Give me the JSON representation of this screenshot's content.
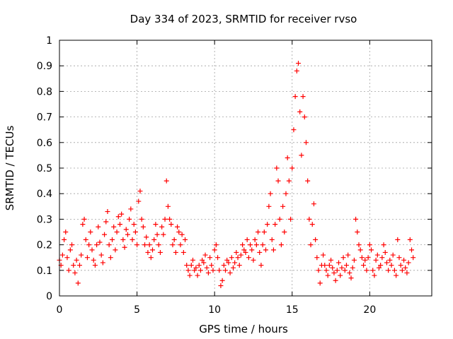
{
  "chart_data": {
    "type": "scatter",
    "title": "Day 334 of 2023, SRMTID for receiver rvso",
    "xlabel": "GPS time / hours",
    "ylabel": "SRMTID / TECUs",
    "xlim": [
      0,
      24
    ],
    "ylim": [
      0,
      1
    ],
    "xticks": [
      0,
      5,
      10,
      15,
      20
    ],
    "yticks": [
      0,
      0.1,
      0.2,
      0.3,
      0.4,
      0.5,
      0.6,
      0.7,
      0.8,
      0.9,
      1
    ],
    "x_tick_labels": [
      "0",
      "5",
      "10",
      "15",
      "20"
    ],
    "y_tick_labels": [
      "0",
      "0.1",
      "0.2",
      "0.3",
      "0.4",
      "0.5",
      "0.6",
      "0.7",
      "0.8",
      "0.9",
      "1"
    ],
    "grid": true,
    "marker": "+",
    "marker_color": "#ff0000",
    "grid_color": "#a0a0a0",
    "series": [
      {
        "name": "SRMTID",
        "points": [
          [
            0.0,
            0.14
          ],
          [
            0.1,
            0.12
          ],
          [
            0.2,
            0.16
          ],
          [
            0.3,
            0.22
          ],
          [
            0.4,
            0.25
          ],
          [
            0.5,
            0.15
          ],
          [
            0.6,
            0.1
          ],
          [
            0.7,
            0.18
          ],
          [
            0.8,
            0.2
          ],
          [
            0.9,
            0.12
          ],
          [
            1.0,
            0.09
          ],
          [
            1.1,
            0.14
          ],
          [
            1.2,
            0.05
          ],
          [
            1.3,
            0.12
          ],
          [
            1.4,
            0.16
          ],
          [
            1.5,
            0.28
          ],
          [
            1.6,
            0.3
          ],
          [
            1.7,
            0.22
          ],
          [
            1.8,
            0.15
          ],
          [
            1.9,
            0.2
          ],
          [
            2.0,
            0.25
          ],
          [
            2.1,
            0.18
          ],
          [
            2.2,
            0.14
          ],
          [
            2.3,
            0.12
          ],
          [
            2.4,
            0.2
          ],
          [
            2.5,
            0.27
          ],
          [
            2.6,
            0.21
          ],
          [
            2.7,
            0.16
          ],
          [
            2.8,
            0.13
          ],
          [
            2.9,
            0.24
          ],
          [
            3.0,
            0.29
          ],
          [
            3.1,
            0.33
          ],
          [
            3.2,
            0.2
          ],
          [
            3.3,
            0.15
          ],
          [
            3.4,
            0.22
          ],
          [
            3.5,
            0.27
          ],
          [
            3.6,
            0.18
          ],
          [
            3.7,
            0.25
          ],
          [
            3.8,
            0.31
          ],
          [
            3.9,
            0.28
          ],
          [
            4.0,
            0.32
          ],
          [
            4.1,
            0.22
          ],
          [
            4.2,
            0.19
          ],
          [
            4.3,
            0.26
          ],
          [
            4.4,
            0.24
          ],
          [
            4.5,
            0.3
          ],
          [
            4.6,
            0.34
          ],
          [
            4.7,
            0.22
          ],
          [
            4.8,
            0.28
          ],
          [
            4.9,
            0.25
          ],
          [
            5.0,
            0.2
          ],
          [
            5.1,
            0.37
          ],
          [
            5.2,
            0.41
          ],
          [
            5.3,
            0.3
          ],
          [
            5.4,
            0.27
          ],
          [
            5.5,
            0.2
          ],
          [
            5.6,
            0.23
          ],
          [
            5.7,
            0.17
          ],
          [
            5.8,
            0.2
          ],
          [
            5.9,
            0.15
          ],
          [
            6.0,
            0.18
          ],
          [
            6.1,
            0.22
          ],
          [
            6.2,
            0.28
          ],
          [
            6.3,
            0.24
          ],
          [
            6.4,
            0.2
          ],
          [
            6.5,
            0.17
          ],
          [
            6.6,
            0.27
          ],
          [
            6.7,
            0.24
          ],
          [
            6.8,
            0.3
          ],
          [
            6.9,
            0.45
          ],
          [
            7.0,
            0.35
          ],
          [
            7.1,
            0.3
          ],
          [
            7.2,
            0.28
          ],
          [
            7.3,
            0.2
          ],
          [
            7.4,
            0.22
          ],
          [
            7.5,
            0.17
          ],
          [
            7.6,
            0.27
          ],
          [
            7.7,
            0.25
          ],
          [
            7.8,
            0.2
          ],
          [
            7.9,
            0.24
          ],
          [
            8.0,
            0.17
          ],
          [
            8.1,
            0.22
          ],
          [
            8.2,
            0.12
          ],
          [
            8.3,
            0.1
          ],
          [
            8.4,
            0.08
          ],
          [
            8.5,
            0.12
          ],
          [
            8.6,
            0.14
          ],
          [
            8.7,
            0.1
          ],
          [
            8.8,
            0.11
          ],
          [
            8.9,
            0.08
          ],
          [
            9.0,
            0.12
          ],
          [
            9.1,
            0.1
          ],
          [
            9.2,
            0.14
          ],
          [
            9.3,
            0.13
          ],
          [
            9.4,
            0.16
          ],
          [
            9.5,
            0.11
          ],
          [
            9.6,
            0.09
          ],
          [
            9.7,
            0.15
          ],
          [
            9.8,
            0.12
          ],
          [
            9.9,
            0.1
          ],
          [
            10.0,
            0.18
          ],
          [
            10.1,
            0.2
          ],
          [
            10.2,
            0.15
          ],
          [
            10.3,
            0.1
          ],
          [
            10.4,
            0.04
          ],
          [
            10.5,
            0.06
          ],
          [
            10.6,
            0.12
          ],
          [
            10.7,
            0.1
          ],
          [
            10.8,
            0.14
          ],
          [
            10.9,
            0.13
          ],
          [
            11.0,
            0.09
          ],
          [
            11.1,
            0.15
          ],
          [
            11.2,
            0.11
          ],
          [
            11.3,
            0.13
          ],
          [
            11.4,
            0.17
          ],
          [
            11.5,
            0.15
          ],
          [
            11.6,
            0.12
          ],
          [
            11.7,
            0.16
          ],
          [
            11.8,
            0.2
          ],
          [
            11.9,
            0.18
          ],
          [
            12.0,
            0.17
          ],
          [
            12.1,
            0.22
          ],
          [
            12.2,
            0.15
          ],
          [
            12.3,
            0.2
          ],
          [
            12.4,
            0.18
          ],
          [
            12.5,
            0.14
          ],
          [
            12.6,
            0.22
          ],
          [
            12.7,
            0.2
          ],
          [
            12.8,
            0.25
          ],
          [
            12.9,
            0.17
          ],
          [
            13.0,
            0.12
          ],
          [
            13.1,
            0.2
          ],
          [
            13.2,
            0.25
          ],
          [
            13.3,
            0.18
          ],
          [
            13.4,
            0.28
          ],
          [
            13.5,
            0.35
          ],
          [
            13.6,
            0.4
          ],
          [
            13.7,
            0.22
          ],
          [
            13.8,
            0.18
          ],
          [
            13.9,
            0.28
          ],
          [
            14.0,
            0.5
          ],
          [
            14.1,
            0.45
          ],
          [
            14.2,
            0.3
          ],
          [
            14.3,
            0.2
          ],
          [
            14.4,
            0.35
          ],
          [
            14.5,
            0.25
          ],
          [
            14.6,
            0.4
          ],
          [
            14.7,
            0.54
          ],
          [
            14.8,
            0.45
          ],
          [
            14.9,
            0.3
          ],
          [
            15.0,
            0.5
          ],
          [
            15.1,
            0.65
          ],
          [
            15.2,
            0.78
          ],
          [
            15.3,
            0.88
          ],
          [
            15.4,
            0.91
          ],
          [
            15.5,
            0.72
          ],
          [
            15.6,
            0.55
          ],
          [
            15.7,
            0.78
          ],
          [
            15.8,
            0.7
          ],
          [
            15.9,
            0.6
          ],
          [
            16.0,
            0.45
          ],
          [
            16.1,
            0.3
          ],
          [
            16.2,
            0.2
          ],
          [
            16.3,
            0.28
          ],
          [
            16.4,
            0.36
          ],
          [
            16.5,
            0.22
          ],
          [
            16.6,
            0.15
          ],
          [
            16.7,
            0.1
          ],
          [
            16.8,
            0.05
          ],
          [
            16.9,
            0.12
          ],
          [
            17.0,
            0.16
          ],
          [
            17.1,
            0.12
          ],
          [
            17.2,
            0.1
          ],
          [
            17.3,
            0.08
          ],
          [
            17.4,
            0.12
          ],
          [
            17.5,
            0.14
          ],
          [
            17.6,
            0.11
          ],
          [
            17.7,
            0.09
          ],
          [
            17.8,
            0.06
          ],
          [
            17.9,
            0.1
          ],
          [
            18.0,
            0.13
          ],
          [
            18.1,
            0.08
          ],
          [
            18.2,
            0.11
          ],
          [
            18.3,
            0.15
          ],
          [
            18.4,
            0.1
          ],
          [
            18.5,
            0.12
          ],
          [
            18.6,
            0.16
          ],
          [
            18.7,
            0.09
          ],
          [
            18.8,
            0.07
          ],
          [
            18.9,
            0.11
          ],
          [
            19.0,
            0.14
          ],
          [
            19.1,
            0.3
          ],
          [
            19.2,
            0.25
          ],
          [
            19.3,
            0.2
          ],
          [
            19.4,
            0.18
          ],
          [
            19.5,
            0.15
          ],
          [
            19.6,
            0.12
          ],
          [
            19.7,
            0.14
          ],
          [
            19.8,
            0.1
          ],
          [
            19.9,
            0.15
          ],
          [
            20.0,
            0.2
          ],
          [
            20.1,
            0.18
          ],
          [
            20.2,
            0.1
          ],
          [
            20.3,
            0.08
          ],
          [
            20.4,
            0.14
          ],
          [
            20.5,
            0.16
          ],
          [
            20.6,
            0.11
          ],
          [
            20.7,
            0.12
          ],
          [
            20.8,
            0.15
          ],
          [
            20.9,
            0.2
          ],
          [
            21.0,
            0.17
          ],
          [
            21.1,
            0.13
          ],
          [
            21.2,
            0.1
          ],
          [
            21.3,
            0.14
          ],
          [
            21.4,
            0.12
          ],
          [
            21.5,
            0.16
          ],
          [
            21.6,
            0.1
          ],
          [
            21.7,
            0.08
          ],
          [
            21.8,
            0.22
          ],
          [
            21.9,
            0.15
          ],
          [
            22.0,
            0.12
          ],
          [
            22.1,
            0.1
          ],
          [
            22.2,
            0.14
          ],
          [
            22.3,
            0.11
          ],
          [
            22.4,
            0.09
          ],
          [
            22.5,
            0.13
          ],
          [
            22.6,
            0.22
          ],
          [
            22.7,
            0.18
          ],
          [
            22.8,
            0.15
          ]
        ]
      }
    ]
  }
}
